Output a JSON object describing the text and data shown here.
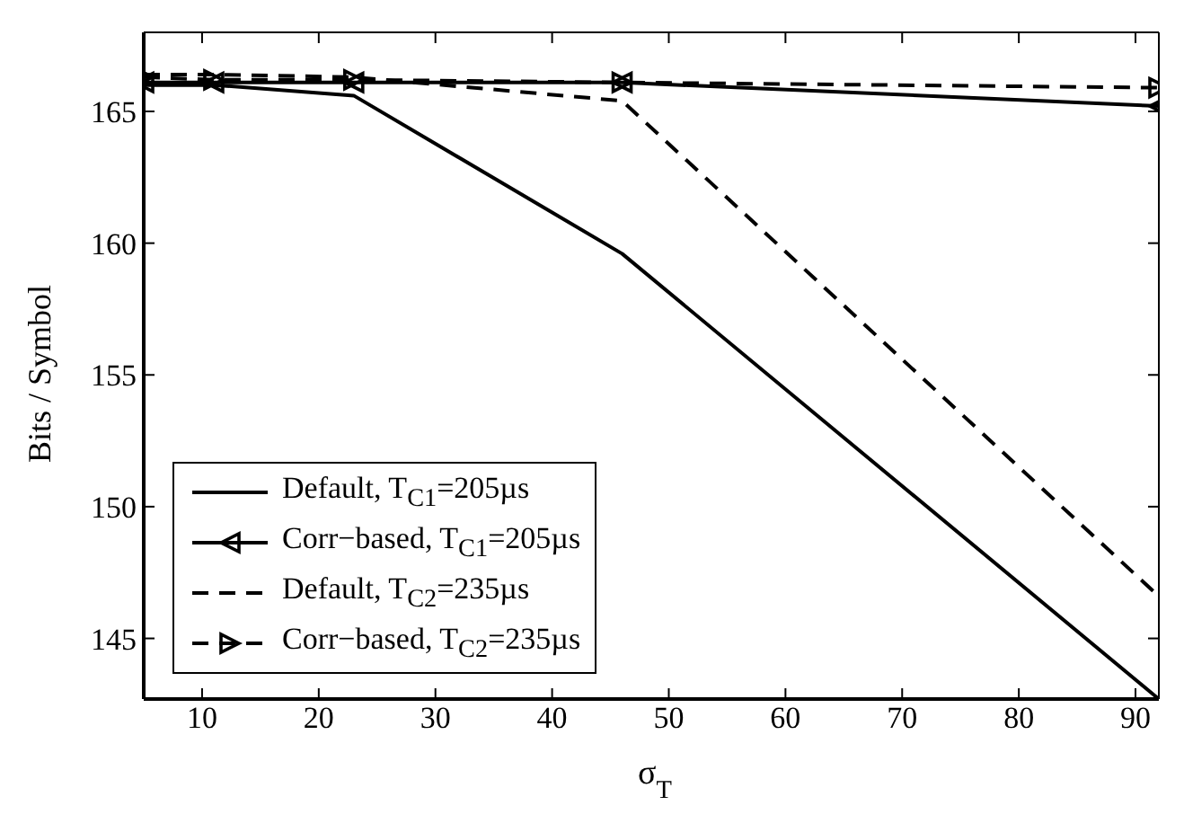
{
  "chart_data": {
    "type": "line",
    "xlabel": "σ$_{T}$",
    "ylabel": "Bits / Symbol",
    "x": [
      5,
      11,
      23,
      46,
      92
    ],
    "series": [
      {
        "name": "Default, T$_{C1}$=205µs",
        "color": "#000000",
        "line_style": "solid",
        "marker": "none",
        "values": [
          166.0,
          166.0,
          165.6,
          159.6,
          142.7
        ]
      },
      {
        "name": "Corr−based, T$_{C1}$=205µs",
        "color": "#000000",
        "line_style": "solid",
        "marker": "triangle",
        "values": [
          166.1,
          166.1,
          166.1,
          166.1,
          165.2
        ]
      },
      {
        "name": "Default, T$_{C2}$=235µs",
        "color": "#000000",
        "line_style": "dashed",
        "marker": "none",
        "values": [
          166.4,
          166.4,
          166.3,
          165.4,
          146.6
        ]
      },
      {
        "name": "Corr−based, T$_{C2}$=235µs",
        "color": "#000000",
        "line_style": "dashed",
        "marker": "triangle",
        "values": [
          166.3,
          166.2,
          166.2,
          166.1,
          165.9
        ]
      }
    ],
    "xlim": [
      5,
      92
    ],
    "xticks": [
      10,
      20,
      30,
      40,
      50,
      60,
      70,
      80,
      90
    ],
    "ylim": [
      142.7,
      168
    ],
    "yticks": [
      145,
      150,
      155,
      160,
      165
    ],
    "grid": false,
    "legend": "bottom left"
  }
}
